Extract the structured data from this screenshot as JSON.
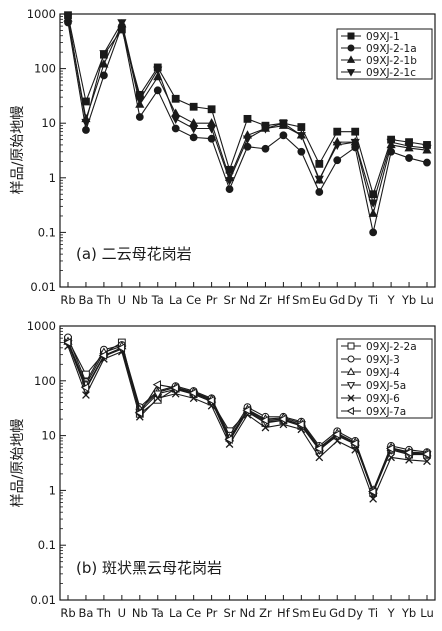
{
  "chart_data": [
    {
      "type": "line",
      "label": "(a) 二云母花岗岩",
      "ylabel": "样品/原始地幔",
      "y_scale": "log",
      "ylim": [
        0.01,
        1000
      ],
      "y_ticks": [
        "0.01",
        "0.1",
        "1",
        "10",
        "100",
        "1000"
      ],
      "categories": [
        "Rb",
        "Ba",
        "Th",
        "U",
        "Nb",
        "Ta",
        "La",
        "Ce",
        "Pr",
        "Sr",
        "Nd",
        "Zr",
        "Hf",
        "Sm",
        "Eu",
        "Gd",
        "Dy",
        "Ti",
        "Y",
        "Yb",
        "Lu"
      ],
      "legend_position": "top-right",
      "series": [
        {
          "name": "09XJ-1",
          "marker": "square-filled",
          "values": [
            950,
            25,
            180,
            520,
            33,
            105,
            28,
            20,
            18,
            1.4,
            12,
            9,
            10,
            8.5,
            1.8,
            7,
            7,
            0.5,
            5,
            4.5,
            4
          ]
        },
        {
          "name": "09XJ-2-1a",
          "marker": "circle-filled",
          "values": [
            700,
            7.5,
            75,
            600,
            13,
            40,
            8,
            5.5,
            5.2,
            0.62,
            3.7,
            3.4,
            6,
            3,
            0.55,
            2.1,
            3.6,
            0.1,
            3,
            2.3,
            1.9
          ]
        },
        {
          "name": "09XJ-2-1b",
          "marker": "triangle-up-filled",
          "values": [
            830,
            12,
            120,
            650,
            22,
            70,
            15,
            10,
            10,
            1,
            6,
            8,
            9,
            6,
            0.9,
            4.5,
            4.5,
            0.22,
            4,
            3.5,
            3.2
          ]
        },
        {
          "name": "09XJ-2-1c",
          "marker": "triangle-down-filled",
          "values": [
            880,
            10.5,
            190,
            700,
            27,
            95,
            12,
            8,
            8,
            0.9,
            5.2,
            8,
            10,
            6,
            0.95,
            4,
            4.5,
            0.35,
            4.5,
            3.8,
            3.5
          ]
        }
      ]
    },
    {
      "type": "line",
      "label": "(b) 斑状黑云母花岗岩",
      "ylabel": "样品/原始地幔",
      "y_scale": "log",
      "ylim": [
        0.01,
        1000
      ],
      "y_ticks": [
        "0.01",
        "0.1",
        "1",
        "10",
        "100",
        "1000"
      ],
      "categories": [
        "Rb",
        "Ba",
        "Th",
        "U",
        "Nb",
        "Ta",
        "La",
        "Ce",
        "Pr",
        "Sr",
        "Nd",
        "Zr",
        "Hf",
        "Sm",
        "Eu",
        "Gd",
        "Dy",
        "Ti",
        "Y",
        "Yb",
        "Lu"
      ],
      "legend_position": "top-right",
      "series": [
        {
          "name": "09XJ-2-2a",
          "marker": "square-open",
          "values": [
            560,
            130,
            320,
            500,
            25,
            45,
            72,
            57,
            42,
            12,
            27,
            17,
            19,
            15,
            5.5,
            10,
            7,
            0.9,
            5.5,
            4.5,
            4.5
          ]
        },
        {
          "name": "09XJ-3",
          "marker": "circle-open",
          "values": [
            620,
            95,
            370,
            450,
            33,
            65,
            80,
            65,
            48,
            10,
            33,
            22,
            22,
            18,
            6.5,
            12,
            8,
            1,
            6.5,
            5.5,
            5
          ]
        },
        {
          "name": "09XJ-4",
          "marker": "triangle-up-open",
          "values": [
            520,
            85,
            330,
            430,
            30,
            62,
            76,
            62,
            46,
            9,
            30,
            20,
            21,
            17,
            6,
            11,
            7.5,
            1,
            6,
            5,
            4.8
          ]
        },
        {
          "name": "09XJ-5a",
          "marker": "triangle-down-open",
          "values": [
            480,
            70,
            280,
            380,
            27,
            58,
            70,
            57,
            42,
            8,
            28,
            18,
            19,
            16,
            5.5,
            10,
            7,
            0.95,
            5.5,
            4.8,
            4.5
          ]
        },
        {
          "name": "09XJ-6",
          "marker": "x-cross",
          "values": [
            430,
            55,
            250,
            340,
            22,
            48,
            58,
            48,
            35,
            7,
            24,
            14,
            16,
            13,
            4,
            8,
            5.5,
            0.7,
            4,
            3.6,
            3.4
          ]
        },
        {
          "name": "09XJ-7a",
          "marker": "triangle-left-open",
          "values": [
            500,
            75,
            290,
            400,
            26,
            85,
            74,
            60,
            44,
            8.5,
            29,
            19,
            20,
            16,
            5.8,
            10.5,
            7.2,
            0.95,
            5.8,
            4.9,
            4.6
          ]
        }
      ]
    }
  ]
}
